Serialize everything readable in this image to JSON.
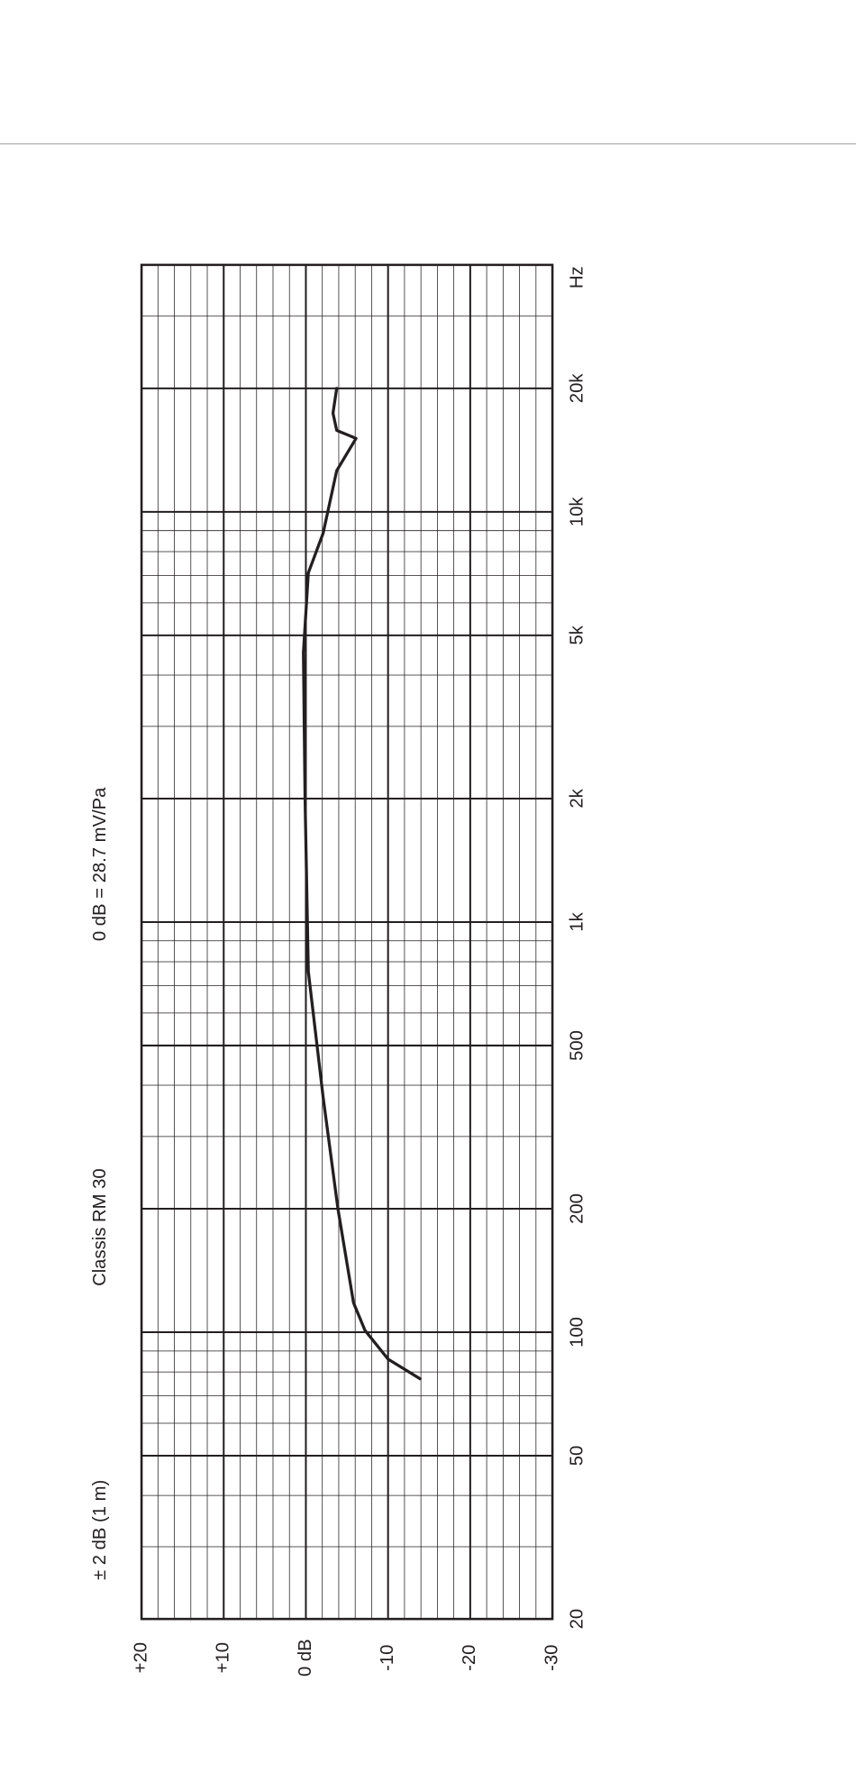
{
  "chart_data": {
    "type": "line",
    "title": "Classis RM 30",
    "subtitle": "0 dB = 28.7 mV/Pa",
    "annotation": "± 2 dB (1 m)",
    "x_label": "Hz",
    "x": [
      77,
      86,
      101,
      118,
      200,
      374,
      757,
      2000,
      4540,
      7100,
      8870,
      12600,
      15100,
      15800,
      17400,
      20000
    ],
    "values": [
      -13.9,
      -10,
      -7.2,
      -5.8,
      -3.9,
      -2.1,
      -0.3,
      0.1,
      0.3,
      -0.3,
      -2.1,
      -3.75,
      -6.1,
      -3.75,
      -3.3,
      -3.75
    ],
    "color": "#231f20",
    "xlim": [
      20,
      40000
    ],
    "xticks": [
      20,
      50,
      100,
      200,
      500,
      {
        "value": 1000,
        "label": "1k"
      },
      {
        "value": 2000,
        "label": "2k"
      },
      {
        "value": 5000,
        "label": "5k"
      },
      {
        "value": 10000,
        "label": "10k"
      },
      {
        "value": 20000,
        "label": "20k"
      }
    ],
    "ylim": [
      -30,
      20
    ],
    "yticks": [
      {
        "value": 20,
        "label": "+20"
      },
      {
        "value": 10,
        "label": "+10"
      },
      {
        "value": 0,
        "label": "0 dB"
      },
      -10,
      -20,
      -30
    ],
    "x_scale": "log",
    "grid": true
  }
}
